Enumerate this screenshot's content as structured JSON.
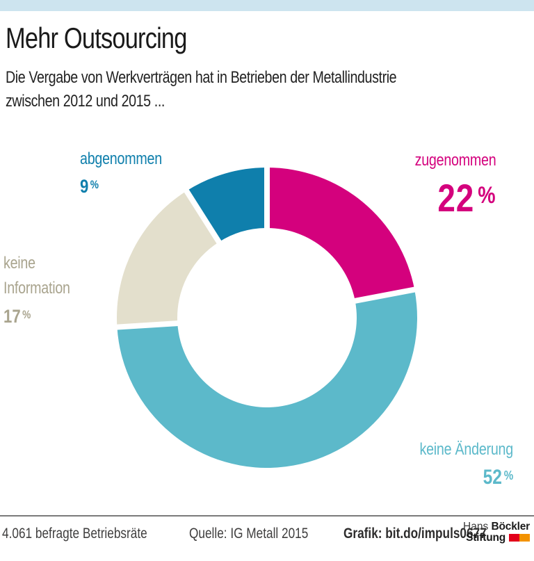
{
  "header": {
    "title": "Mehr Outsourcing",
    "subtitle_line1": "Die Vergabe von Werkverträgen hat in Betrieben der Metallindustrie",
    "subtitle_line2": "zwischen 2012 und 2015 ..."
  },
  "chart_data": {
    "type": "pie",
    "subtype": "donut",
    "title": "Mehr Outsourcing",
    "unit": "%",
    "start_angle_deg": 0,
    "direction": "clockwise",
    "segments": [
      {
        "label": "zugenommen",
        "value": 22,
        "color": "#d4017d",
        "label_color": "#d4017d"
      },
      {
        "label": "keine Änderung",
        "value": 52,
        "color": "#5cb9ca",
        "label_color": "#5cb9ca"
      },
      {
        "label": "keine Information",
        "value": 17,
        "color": "#e3dfcc",
        "label_color": "#a9a48e"
      },
      {
        "label": "abgenommen",
        "value": 9,
        "color": "#0f7fac",
        "label_color": "#0f7fac"
      }
    ]
  },
  "footer": {
    "sample": "4.061 befragte Betriebsräte",
    "source": "Quelle: IG Metall 2015",
    "credit": "Grafik: bit.do/impuls0677"
  },
  "logo": {
    "name_regular": "Hans",
    "name_bold": "Böckler",
    "line2_bold": "Stiftung",
    "square_colors": [
      "#e2001a",
      "#f39200"
    ]
  },
  "colors": {
    "topbar": "#cde4ef",
    "separator": "#ffffff",
    "rule": "#7a7a7a"
  }
}
